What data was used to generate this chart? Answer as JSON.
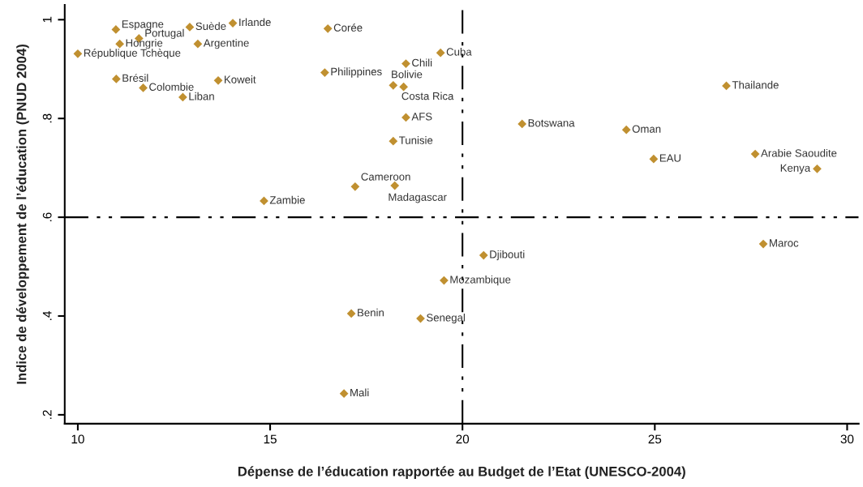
{
  "chart_data": {
    "type": "scatter",
    "xlabel": "Dépense de l’éducation rapportée au Budget de l’Etat (UNESCO-2004)",
    "ylabel": "Indice de développement de l’éducation (PNUD 2004)",
    "x": [
      10.99,
      11.59,
      12.91,
      14.03,
      11.09,
      13.12,
      10.0,
      16.5,
      19.43,
      18.53,
      16.42,
      18.2,
      18.47,
      11.0,
      11.7,
      13.65,
      12.73,
      18.53,
      18.2,
      17.21,
      18.24,
      14.84,
      26.86,
      21.55,
      24.26,
      24.97,
      27.61,
      29.22,
      27.82,
      20.55,
      19.52,
      17.11,
      18.91,
      16.92
    ],
    "values": [
      0.98,
      0.962,
      0.985,
      0.993,
      0.951,
      0.951,
      0.931,
      0.982,
      0.933,
      0.911,
      0.893,
      0.867,
      0.864,
      0.88,
      0.862,
      0.877,
      0.843,
      0.802,
      0.754,
      0.662,
      0.664,
      0.633,
      0.866,
      0.789,
      0.777,
      0.718,
      0.728,
      0.698,
      0.546,
      0.523,
      0.472,
      0.405,
      0.395,
      0.243
    ],
    "color": "#c09030",
    "marker": "diamond",
    "grid": false,
    "legend": false,
    "xlim": [
      9.66,
      30.3
    ],
    "ylim": [
      0.182,
      1.03
    ],
    "xticks": [
      10,
      15,
      20,
      25,
      30
    ],
    "yticks": [
      {
        "value": 0.2,
        "label": ".2"
      },
      {
        "value": 0.4,
        "label": ".4"
      },
      {
        "value": 0.6,
        "label": ".6"
      },
      {
        "value": 0.8,
        "label": ".8"
      },
      {
        "value": 1,
        "label": "1"
      }
    ],
    "ref_lines": [
      {
        "axis": "y",
        "value": 0.6,
        "line_style": "dashed",
        "color": "#000000"
      },
      {
        "axis": "x",
        "value": 20,
        "line_style": "dashed",
        "color": "#000000"
      }
    ],
    "annotations": [
      {
        "text": "Espagne",
        "x": 10.99,
        "y": 0.98
      },
      {
        "text": "Portugal",
        "x": 11.59,
        "y": 0.962
      },
      {
        "text": "Suède",
        "x": 12.91,
        "y": 0.985
      },
      {
        "text": "Irlande",
        "x": 14.03,
        "y": 0.993
      },
      {
        "text": "Hongrie",
        "x": 11.09,
        "y": 0.951
      },
      {
        "text": "Argentine",
        "x": 13.12,
        "y": 0.951
      },
      {
        "text": "République Tchèque",
        "x": 10.0,
        "y": 0.931
      },
      {
        "text": "Corée",
        "x": 16.5,
        "y": 0.982
      },
      {
        "text": "Cuba",
        "x": 19.43,
        "y": 0.933
      },
      {
        "text": "Chili",
        "x": 18.53,
        "y": 0.911
      },
      {
        "text": "Philippines",
        "x": 16.42,
        "y": 0.893
      },
      {
        "text": "Bolivie",
        "x": 18.2,
        "y": 0.867
      },
      {
        "text": "Costa Rica",
        "x": 18.47,
        "y": 0.864
      },
      {
        "text": "Brésil",
        "x": 11.0,
        "y": 0.88
      },
      {
        "text": "Colombie",
        "x": 11.7,
        "y": 0.862
      },
      {
        "text": "Koweit",
        "x": 13.65,
        "y": 0.877
      },
      {
        "text": "Liban",
        "x": 12.73,
        "y": 0.843
      },
      {
        "text": "AFS",
        "x": 18.53,
        "y": 0.802
      },
      {
        "text": "Tunisie",
        "x": 18.2,
        "y": 0.754
      },
      {
        "text": "Cameroon",
        "x": 17.21,
        "y": 0.662
      },
      {
        "text": "Madagascar",
        "x": 18.24,
        "y": 0.664
      },
      {
        "text": "Zambie",
        "x": 14.84,
        "y": 0.633
      },
      {
        "text": "Thailande",
        "x": 26.86,
        "y": 0.866
      },
      {
        "text": "Botswana",
        "x": 21.55,
        "y": 0.789
      },
      {
        "text": "Oman",
        "x": 24.26,
        "y": 0.777
      },
      {
        "text": "EAU",
        "x": 24.97,
        "y": 0.718
      },
      {
        "text": "Arabie Saoudite",
        "x": 27.61,
        "y": 0.728
      },
      {
        "text": "Kenya",
        "x": 29.22,
        "y": 0.698
      },
      {
        "text": "Maroc",
        "x": 27.82,
        "y": 0.546
      },
      {
        "text": "Djibouti",
        "x": 20.55,
        "y": 0.523
      },
      {
        "text": "Mozambique",
        "x": 19.52,
        "y": 0.472
      },
      {
        "text": "Benin",
        "x": 17.11,
        "y": 0.405
      },
      {
        "text": "Senegal",
        "x": 18.91,
        "y": 0.395
      },
      {
        "text": "Mali",
        "x": 16.92,
        "y": 0.243
      }
    ]
  }
}
